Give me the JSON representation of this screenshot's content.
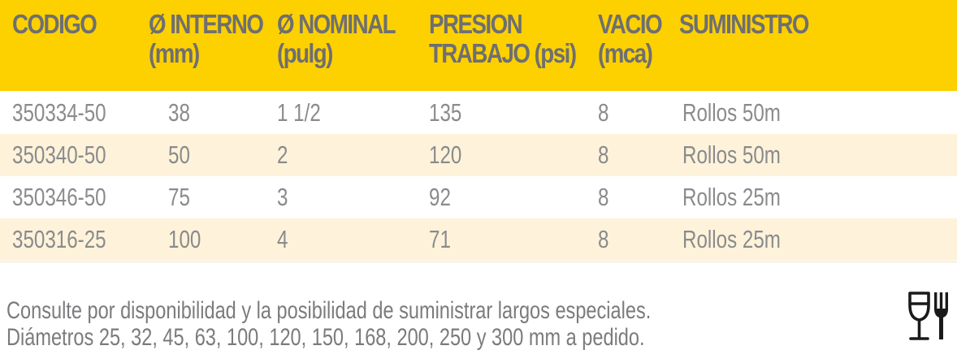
{
  "table": {
    "headers": [
      {
        "line1": "CODIGO",
        "line2": ""
      },
      {
        "line1": "Ø INTERNO",
        "line2": "(mm)"
      },
      {
        "line1": "Ø NOMINAL",
        "line2": "(pulg)"
      },
      {
        "line1": "PRESION",
        "line2": "TRABAJO (psi)"
      },
      {
        "line1": "VACIO",
        "line2": "(mca)"
      },
      {
        "line1": "SUMINISTRO",
        "line2": ""
      }
    ],
    "rows": [
      [
        "350334-50",
        "38",
        "1 1/2",
        "135",
        "8",
        "Rollos 50m"
      ],
      [
        "350340-50",
        "50",
        "2",
        "120",
        "8",
        "Rollos 50m"
      ],
      [
        "350346-50",
        "75",
        "3",
        "92",
        "8",
        "Rollos 25m"
      ],
      [
        "350316-25",
        "100",
        "4",
        "71",
        "8",
        "Rollos 25m"
      ]
    ]
  },
  "notes": {
    "line1": "Consulte por disponibilidad y la posibilidad de suministrar largos especiales.",
    "line2": "Diámetros 25, 32, 45, 63, 100, 120, 150, 168, 200, 250 y 300 mm a pedido."
  },
  "icons": {
    "food_safe": "food-grade-glass-fork-icon"
  },
  "colors": {
    "header_bg": "#FDD000",
    "header_text": "#6E6F71",
    "alt_row_bg": "#FEF3DA",
    "body_text": "#8A8B8D"
  }
}
